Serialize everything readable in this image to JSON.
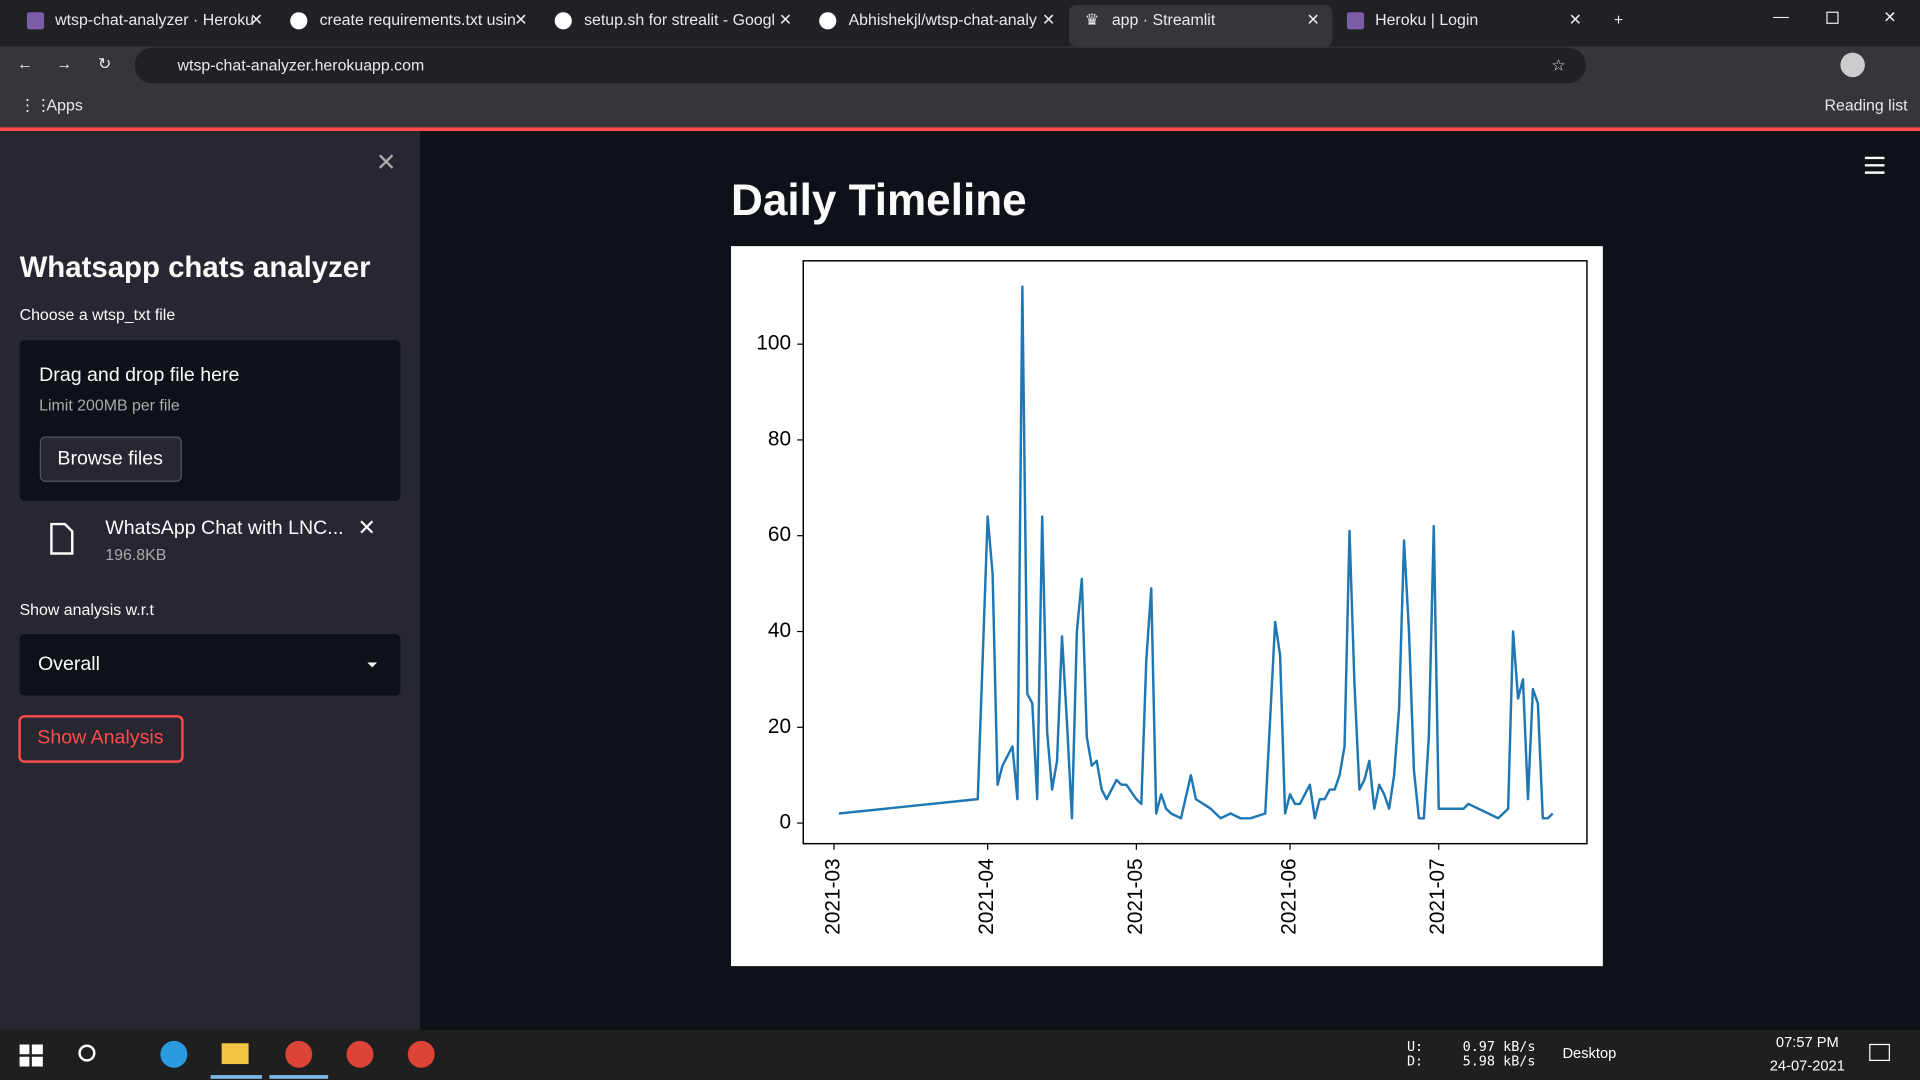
{
  "browser": {
    "tabs": [
      "wtsp-chat-analyzer · Heroku",
      "create requirements.txt usin",
      "setup.sh for strealit - Googl",
      "Abhishekjl/wtsp-chat-analy",
      "app · Streamlit",
      "Heroku | Login"
    ],
    "url": "wtsp-chat-analyzer.herokuapp.com",
    "bookmarks": {
      "apps": "Apps",
      "reading_list": "Reading list"
    }
  },
  "sidebar": {
    "title": "Whatsapp chats analyzer",
    "uploader_label": "Choose a wtsp_txt file",
    "drop_text": "Drag and drop file here",
    "limit": "Limit 200MB per file",
    "browse": "Browse files",
    "file_name": "WhatsApp Chat with LNC...",
    "file_size": "196.8KB",
    "select_label": "Show analysis w.r.t",
    "select_value": "Overall",
    "button": "Show Analysis"
  },
  "main": {
    "heading": "Daily Timeline"
  },
  "chart_data": {
    "type": "line",
    "color": "#1f77b4",
    "x": [
      1,
      29,
      31,
      32,
      33,
      34,
      36,
      37,
      38,
      39,
      40,
      41,
      42,
      43,
      44,
      45,
      46,
      47,
      48,
      49,
      50,
      51,
      52,
      53,
      54,
      55,
      56,
      57,
      58,
      59,
      61,
      62,
      63,
      64,
      65,
      66,
      67,
      68,
      70,
      72,
      73,
      76,
      78,
      80,
      82,
      84,
      87,
      89,
      90,
      91,
      92,
      93,
      94,
      95,
      96,
      97,
      98,
      99,
      100,
      101,
      102,
      103,
      104,
      105,
      106,
      107,
      108,
      109,
      110,
      111,
      112,
      113,
      114,
      115,
      116,
      117,
      118,
      119,
      120,
      121,
      122,
      127,
      128,
      134,
      136,
      137,
      138,
      139,
      140,
      141,
      142,
      143,
      144,
      145
    ],
    "values": [
      2,
      5,
      64,
      52,
      8,
      12,
      16,
      5,
      112,
      27,
      25,
      5,
      64,
      19,
      7,
      13,
      39,
      21,
      1,
      40,
      51,
      18,
      12,
      13,
      7,
      5,
      7,
      9,
      8,
      8,
      5,
      4,
      34,
      49,
      2,
      6,
      3,
      2,
      1,
      10,
      5,
      3,
      1,
      2,
      1,
      1,
      2,
      42,
      35,
      2,
      6,
      4,
      4,
      6,
      8,
      1,
      5,
      5,
      7,
      7,
      10,
      16,
      61,
      29,
      7,
      9,
      13,
      3,
      8,
      6,
      3,
      10,
      24,
      59,
      40,
      11,
      1,
      1,
      18,
      62,
      3,
      3,
      4,
      1,
      3,
      40,
      26,
      30,
      5,
      28,
      25,
      1,
      1,
      2
    ],
    "xlim": [
      -6.2,
      151.9
    ],
    "xticks": [
      {
        "value": 0,
        "label": "2021-03"
      },
      {
        "value": 31,
        "label": "2021-04"
      },
      {
        "value": 61,
        "label": "2021-05"
      },
      {
        "value": 92,
        "label": "2021-06"
      },
      {
        "value": 122,
        "label": "2021-07"
      }
    ],
    "ylim": [
      -4.3,
      117.4
    ],
    "yticks": [
      0,
      20,
      40,
      60,
      80,
      100
    ]
  },
  "taskbar": {
    "upload_label": "U:",
    "download_label": "D:",
    "upload_rate": "0.97 kB/s",
    "download_rate": "5.98 kB/s",
    "desktop": "Desktop",
    "time": "07:57 PM",
    "date": "24-07-2021"
  }
}
